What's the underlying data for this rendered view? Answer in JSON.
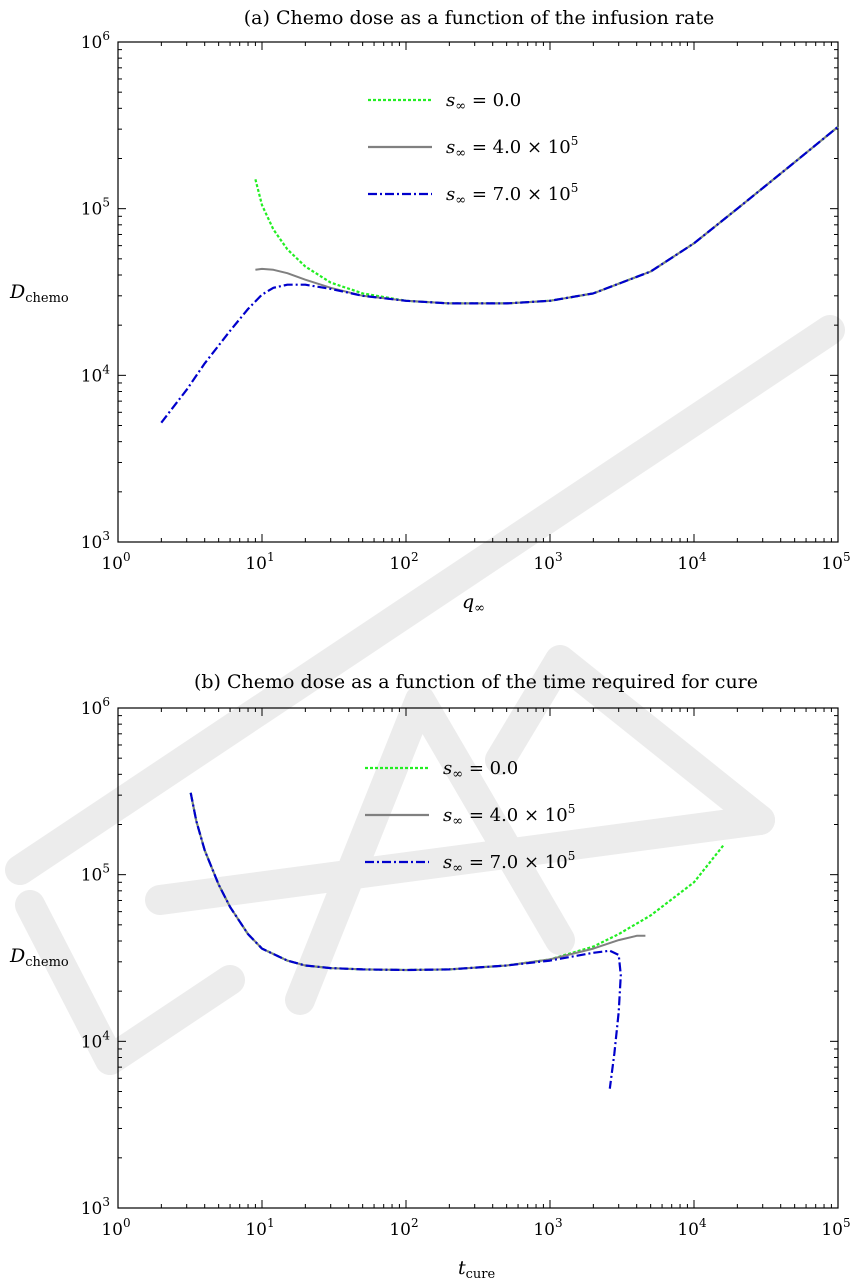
{
  "chart_data": [
    {
      "type": "line",
      "title": "(a) Chemo dose as a function of the infusion rate",
      "xlabel": "q∞",
      "ylabel": "Dchemo",
      "xscale": "log",
      "yscale": "log",
      "xlim": [
        1,
        100000
      ],
      "ylim": [
        1000,
        1000000
      ],
      "xticks": [
        {
          "base": "10",
          "exp": "0"
        },
        {
          "base": "10",
          "exp": "1"
        },
        {
          "base": "10",
          "exp": "2"
        },
        {
          "base": "10",
          "exp": "3"
        },
        {
          "base": "10",
          "exp": "4"
        },
        {
          "base": "10",
          "exp": "5"
        }
      ],
      "yticks": [
        {
          "base": "10",
          "exp": "3"
        },
        {
          "base": "10",
          "exp": "4"
        },
        {
          "base": "10",
          "exp": "5"
        },
        {
          "base": "10",
          "exp": "6"
        }
      ],
      "legend_position": "top-center",
      "series": [
        {
          "name": "s∞ = 0.0",
          "color": "#22ee22",
          "dash": "dotted",
          "x": [
            9,
            10,
            12,
            15,
            20,
            30,
            50,
            100,
            200,
            500,
            1000,
            2000,
            5000,
            10000,
            20000,
            50000,
            100000
          ],
          "y": [
            150000,
            105000,
            75000,
            57000,
            45000,
            36000,
            31000,
            28000,
            27000,
            27000,
            28000,
            31000,
            42000,
            62000,
            100000,
            190000,
            310000
          ]
        },
        {
          "name": "s∞ = 4.0 × 10^5",
          "color": "#808080",
          "dash": "solid",
          "x": [
            9,
            10,
            12,
            15,
            20,
            30,
            50,
            100,
            200,
            500,
            1000,
            2000,
            5000,
            10000,
            20000,
            50000,
            100000
          ],
          "y": [
            43000,
            43500,
            43000,
            41000,
            37500,
            33500,
            30000,
            28000,
            27000,
            27000,
            28000,
            31000,
            42000,
            62000,
            100000,
            190000,
            310000
          ]
        },
        {
          "name": "s∞ = 7.0 × 10^5",
          "color": "#0000cc",
          "dash": "dashdot",
          "x": [
            2,
            3,
            4,
            6,
            8,
            10,
            12,
            15,
            20,
            30,
            50,
            100,
            200,
            500,
            1000,
            2000,
            5000,
            10000,
            20000,
            50000,
            100000
          ],
          "y": [
            5200,
            8200,
            11800,
            18500,
            25000,
            30500,
            33500,
            35000,
            35000,
            33000,
            30000,
            28000,
            27000,
            27000,
            28000,
            31000,
            42000,
            62000,
            100000,
            190000,
            310000
          ]
        }
      ]
    },
    {
      "type": "line",
      "title": "(b) Chemo dose as a function of the time required for cure",
      "xlabel": "tcure",
      "ylabel": "Dchemo",
      "xscale": "log",
      "yscale": "log",
      "xlim": [
        1,
        100000
      ],
      "ylim": [
        1000,
        1000000
      ],
      "xticks": [
        {
          "base": "10",
          "exp": "0"
        },
        {
          "base": "10",
          "exp": "1"
        },
        {
          "base": "10",
          "exp": "2"
        },
        {
          "base": "10",
          "exp": "3"
        },
        {
          "base": "10",
          "exp": "4"
        },
        {
          "base": "10",
          "exp": "5"
        }
      ],
      "yticks": [
        {
          "base": "10",
          "exp": "3"
        },
        {
          "base": "10",
          "exp": "4"
        },
        {
          "base": "10",
          "exp": "5"
        },
        {
          "base": "10",
          "exp": "6"
        }
      ],
      "legend_position": "top-center",
      "series": [
        {
          "name": "s∞ = 0.0",
          "color": "#22ee22",
          "dash": "dotted",
          "x": [
            3.2,
            3.5,
            4,
            5,
            6,
            8,
            10,
            15,
            20,
            30,
            50,
            100,
            200,
            500,
            1000,
            2000,
            3000,
            5000,
            10000,
            16000
          ],
          "y": [
            310000,
            210000,
            140000,
            87000,
            64000,
            44000,
            36000,
            30500,
            28500,
            27500,
            27000,
            26800,
            27000,
            28500,
            31000,
            37000,
            44000,
            57000,
            90000,
            150000
          ]
        },
        {
          "name": "s∞ = 4.0 × 10^5",
          "color": "#808080",
          "dash": "solid",
          "x": [
            3.2,
            3.5,
            4,
            5,
            6,
            8,
            10,
            15,
            20,
            30,
            50,
            100,
            200,
            500,
            1000,
            2000,
            3000,
            4000,
            4600
          ],
          "y": [
            310000,
            210000,
            140000,
            87000,
            64000,
            44000,
            36000,
            30500,
            28500,
            27500,
            27000,
            26800,
            27000,
            28500,
            31000,
            36000,
            40500,
            43000,
            43000
          ]
        },
        {
          "name": "s∞ = 7.0 × 10^5",
          "color": "#0000cc",
          "dash": "dashdot",
          "x": [
            3.2,
            3.5,
            4,
            5,
            6,
            8,
            10,
            15,
            20,
            30,
            50,
            100,
            200,
            500,
            1000,
            2000,
            2600,
            3000,
            3100,
            3000,
            2800,
            2600
          ],
          "y": [
            310000,
            210000,
            140000,
            87000,
            64000,
            44000,
            36000,
            30500,
            28500,
            27500,
            27000,
            26800,
            27000,
            28500,
            30500,
            34000,
            35000,
            33000,
            25000,
            15000,
            8500,
            5200
          ]
        }
      ]
    }
  ],
  "watermark_text": "DRAFT"
}
